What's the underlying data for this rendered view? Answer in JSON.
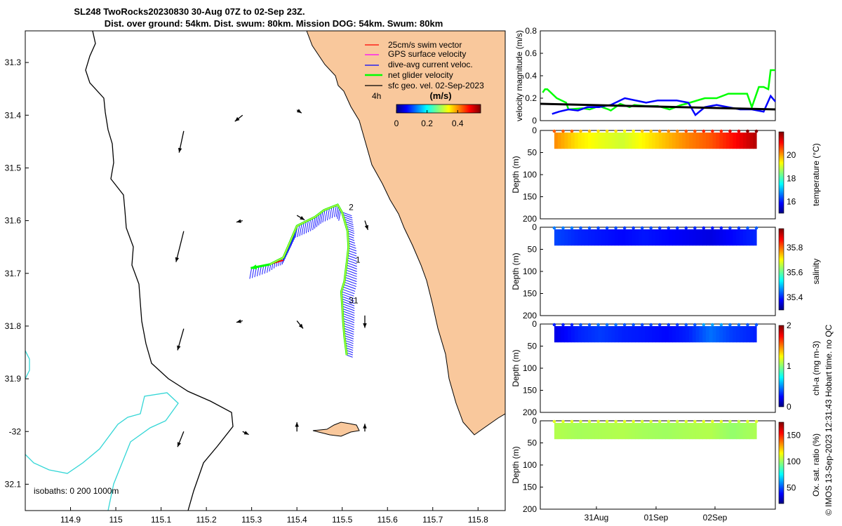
{
  "title_line1": "SL248 TwoRocks20230830 30-Aug 07Z to 02-Sep 23Z.",
  "title_line2": "Dist. over ground: 54km. Dist. swum: 80km. Mission DOG: 54km. Swum: 80km",
  "footer": "© IMOS 13-Sep-2023 12:31:43 Hobart time. no QC",
  "colors": {
    "land": "#f9c89c",
    "coast": "#000000",
    "isobath200": "#000000",
    "isobath1000": "#33d6d6",
    "swim": "#ff0000",
    "gps": "#ff00ff",
    "diveavg": "#0000ff",
    "net": "#00ff00",
    "geo": "#000000"
  },
  "chart_data": [
    {
      "type": "scatter",
      "name": "map",
      "title": "SL248 TwoRocks20230830 30-Aug 07Z to 02-Sep 23Z.",
      "xlabel": "longitude",
      "ylabel": "latitude",
      "xlim": [
        114.8,
        115.86
      ],
      "ylim": [
        -32.15,
        -31.24
      ],
      "xticks": [
        114.9,
        115.0,
        115.1,
        115.2,
        115.3,
        115.4,
        115.5,
        115.6,
        115.7,
        115.8
      ],
      "xtick_labels": [
        "114.9",
        "115",
        "115.1",
        "115.2",
        "115.3",
        "115.4",
        "115.5",
        "115.6",
        "115.7",
        "115.8"
      ],
      "yticks": [
        -31.3,
        -31.4,
        -31.5,
        -31.6,
        -31.7,
        -31.8,
        -31.9,
        -32.0,
        -32.1
      ],
      "ytick_labels": [
        "31.3",
        "31.4",
        "31.5",
        "31.6",
        "31.7",
        "31.8",
        "31.9",
        "-32",
        "32.1"
      ],
      "legend": [
        "25cm/s swim vector",
        "GPS surface velocity",
        "dive-avg current veloc.",
        "net glider velocity",
        "sfc geo. vel. 02-Sep-2023"
      ],
      "legend_position": "top-right",
      "scale_label": "4h",
      "colorbar_title": "(m/s)",
      "colorbar_ticks": [
        0,
        0.2,
        0.4
      ],
      "colorbar_tick_labels": [
        "0",
        "0.2",
        "0.4"
      ],
      "isobath_label": "isobaths: 0   200  1000m",
      "track": [
        [
          115.51,
          -31.855
        ],
        [
          115.505,
          -31.82
        ],
        [
          115.502,
          -31.79
        ],
        [
          115.5,
          -31.76
        ],
        [
          115.498,
          -31.735
        ],
        [
          115.505,
          -31.715
        ],
        [
          115.51,
          -31.68
        ],
        [
          115.514,
          -31.65
        ],
        [
          115.512,
          -31.62
        ],
        [
          115.5,
          -31.585
        ],
        [
          115.49,
          -31.57
        ],
        [
          115.46,
          -31.58
        ],
        [
          115.44,
          -31.593
        ],
        [
          115.4,
          -31.61
        ],
        [
          115.385,
          -31.64
        ],
        [
          115.37,
          -31.67
        ],
        [
          115.34,
          -31.683
        ],
        [
          115.3,
          -31.69
        ]
      ],
      "day_markers": [
        {
          "label": "2",
          "lon": 115.51,
          "lat": -31.58
        },
        {
          "label": "1",
          "lon": 115.525,
          "lat": -31.68
        },
        {
          "label": "31",
          "lon": 115.51,
          "lat": -31.757
        }
      ],
      "geo_vectors": [
        {
          "lon": 115.15,
          "lat": -31.43,
          "u": -0.03,
          "v": -0.14
        },
        {
          "lon": 115.28,
          "lat": -31.4,
          "u": -0.05,
          "v": -0.04
        },
        {
          "lon": 115.4,
          "lat": -31.39,
          "u": 0.03,
          "v": -0.02
        },
        {
          "lon": 115.15,
          "lat": -31.62,
          "u": -0.05,
          "v": -0.2
        },
        {
          "lon": 115.28,
          "lat": -31.6,
          "u": -0.04,
          "v": -0.01
        },
        {
          "lon": 115.4,
          "lat": -31.59,
          "u": 0.05,
          "v": -0.03
        },
        {
          "lon": 115.55,
          "lat": -31.6,
          "u": 0.02,
          "v": -0.06
        },
        {
          "lon": 115.15,
          "lat": -31.805,
          "u": -0.04,
          "v": -0.14
        },
        {
          "lon": 115.28,
          "lat": -31.79,
          "u": -0.04,
          "v": -0.01
        },
        {
          "lon": 115.4,
          "lat": -31.79,
          "u": 0.04,
          "v": -0.05
        },
        {
          "lon": 115.55,
          "lat": -31.78,
          "u": 0.0,
          "v": -0.08
        },
        {
          "lon": 115.15,
          "lat": -32.0,
          "u": -0.04,
          "v": -0.1
        },
        {
          "lon": 115.28,
          "lat": -32.0,
          "u": 0.04,
          "v": -0.02
        },
        {
          "lon": 115.4,
          "lat": -32.0,
          "u": 0.0,
          "v": 0.06
        },
        {
          "lon": 115.55,
          "lat": -32.0,
          "u": 0.0,
          "v": 0.05
        }
      ]
    },
    {
      "type": "line",
      "name": "velocity",
      "ylabel": "velocity magnitude (m/s)",
      "ylim": [
        0,
        0.8
      ],
      "yticks": [
        0,
        0.2,
        0.4,
        0.6,
        0.8
      ],
      "ytick_labels": [
        "0",
        "0.2",
        "0.4",
        "0.6",
        "0.8"
      ],
      "xlim": [
        0,
        1
      ],
      "series": [
        {
          "name": "net glider velocity",
          "color": "#00ff00",
          "x": [
            0.01,
            0.02,
            0.03,
            0.07,
            0.11,
            0.12,
            0.18,
            0.21,
            0.25,
            0.29,
            0.3,
            0.34,
            0.38,
            0.4,
            0.45,
            0.5,
            0.55,
            0.6,
            0.62,
            0.7,
            0.75,
            0.8,
            0.85,
            0.88,
            0.9,
            0.93,
            0.95,
            0.97,
            0.98,
            1.0
          ],
          "y": [
            0.25,
            0.28,
            0.28,
            0.2,
            0.16,
            0.1,
            0.11,
            0.1,
            0.13,
            0.1,
            0.09,
            0.15,
            0.12,
            0.14,
            0.13,
            0.13,
            0.1,
            0.14,
            0.15,
            0.2,
            0.2,
            0.24,
            0.24,
            0.24,
            0.12,
            0.3,
            0.3,
            0.28,
            0.45,
            0.45
          ]
        },
        {
          "name": "dive-avg current veloc.",
          "color": "#0000ff",
          "x": [
            0.05,
            0.08,
            0.12,
            0.16,
            0.2,
            0.25,
            0.3,
            0.36,
            0.45,
            0.5,
            0.58,
            0.63,
            0.66,
            0.7,
            0.75,
            0.8,
            0.85,
            0.9,
            0.95,
            0.98,
            1.0
          ],
          "y": [
            0.06,
            0.08,
            0.1,
            0.09,
            0.12,
            0.12,
            0.14,
            0.2,
            0.16,
            0.18,
            0.18,
            0.16,
            0.05,
            0.12,
            0.14,
            0.12,
            0.1,
            0.1,
            0.08,
            0.22,
            0.17
          ]
        },
        {
          "name": "sfc geo. vel.",
          "color": "#000000",
          "x": [
            0.0,
            1.0
          ],
          "y": [
            0.15,
            0.1
          ]
        }
      ]
    },
    {
      "type": "heatmap",
      "name": "temperature",
      "ylabel": "Depth (m)",
      "colorbar_label": "temperature (°C)",
      "ylim": [
        0,
        200
      ],
      "yticks": [
        0,
        50,
        100,
        150,
        200
      ],
      "ytick_labels": [
        "0",
        "50",
        "100",
        "150",
        "200"
      ],
      "clim": [
        15,
        22
      ],
      "cticks": [
        16,
        18,
        20
      ],
      "ctick_labels": [
        "16",
        "18",
        "20"
      ],
      "depth_range": [
        0,
        40
      ],
      "values_along_track": [
        20.1,
        19.5,
        19.2,
        19.0,
        19.4,
        19.8,
        20.2,
        20.5,
        21.0,
        21.6
      ]
    },
    {
      "type": "heatmap",
      "name": "salinity",
      "ylabel": "Depth (m)",
      "colorbar_label": "salinity",
      "ylim": [
        0,
        200
      ],
      "yticks": [
        0,
        50,
        100,
        150,
        200
      ],
      "ytick_labels": [
        "0",
        "50",
        "100",
        "150",
        "200"
      ],
      "clim": [
        35.3,
        35.95
      ],
      "cticks": [
        35.4,
        35.6,
        35.8
      ],
      "ctick_labels": [
        "35.4",
        "35.6",
        "35.8"
      ],
      "depth_range": [
        0,
        40
      ],
      "values_along_track": [
        35.42,
        35.4,
        35.39,
        35.38,
        35.39,
        35.38,
        35.37,
        35.36,
        35.38,
        35.4
      ]
    },
    {
      "type": "heatmap",
      "name": "chl-a",
      "ylabel": "Depth (m)",
      "colorbar_label": "chl-a (mg m-3)",
      "ylim": [
        0,
        200
      ],
      "yticks": [
        0,
        50,
        100,
        150,
        200
      ],
      "ytick_labels": [
        "0",
        "50",
        "100",
        "150",
        "200"
      ],
      "clim": [
        0,
        2
      ],
      "cticks": [
        0,
        1,
        2
      ],
      "ctick_labels": [
        "0",
        "1",
        "2"
      ],
      "depth_range": [
        0,
        40
      ],
      "values_along_track": [
        0.2,
        0.3,
        0.35,
        0.3,
        0.28,
        0.25,
        0.3,
        0.45,
        0.35,
        0.3
      ]
    },
    {
      "type": "heatmap",
      "name": "oxygen",
      "ylabel": "Depth (m)",
      "colorbar_label": "Ox. sat. ratio (%)",
      "ylim": [
        0,
        200
      ],
      "yticks": [
        0,
        50,
        100,
        150,
        200
      ],
      "ytick_labels": [
        "0",
        "50",
        "100",
        "150",
        "200"
      ],
      "clim": [
        20,
        175
      ],
      "cticks": [
        50,
        100,
        150
      ],
      "ctick_labels": [
        "50",
        "100",
        "150"
      ],
      "depth_range": [
        0,
        40
      ],
      "values_along_track": [
        104,
        102,
        103,
        104,
        102,
        101,
        103,
        104,
        99,
        103
      ],
      "xtick_labels": [
        "31Aug",
        "01Sep",
        "02Sep"
      ]
    }
  ]
}
